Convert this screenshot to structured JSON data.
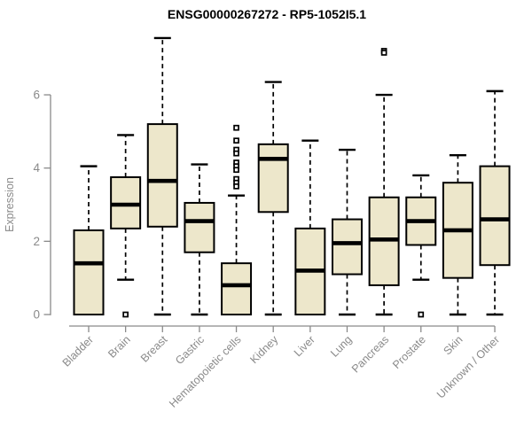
{
  "colors": {
    "background": "#ffffff",
    "box_fill": "#ede7cb",
    "box_border": "#000000",
    "median": "#000000",
    "axis": "#8a8a8a",
    "title_text": "#000000"
  },
  "chart_data": {
    "type": "boxplot",
    "title": "ENSG00000267272 - RP5-1052I5.1",
    "ylabel": "Expression",
    "xlabel": "",
    "yticks": [
      0,
      2,
      4,
      6
    ],
    "ylim": [
      0,
      7.7
    ],
    "grid": false,
    "legend": "none",
    "categories": [
      "Bladder",
      "Brain",
      "Breast",
      "Gastric",
      "Hematopoietic cells",
      "Kidney",
      "Liver",
      "Lung",
      "Pancreas",
      "Prostate",
      "Skin",
      "Unknown / Other"
    ],
    "series": [
      {
        "name": "Bladder",
        "whisker_low": 0,
        "q1": 0,
        "median": 1.4,
        "q3": 2.3,
        "whisker_high": 4.05,
        "outliers": []
      },
      {
        "name": "Brain",
        "whisker_low": 0.95,
        "q1": 2.35,
        "median": 3.0,
        "q3": 3.75,
        "whisker_high": 4.9,
        "outliers": [
          0
        ]
      },
      {
        "name": "Breast",
        "whisker_low": 0,
        "q1": 2.4,
        "median": 3.65,
        "q3": 5.2,
        "whisker_high": 7.55,
        "outliers": []
      },
      {
        "name": "Gastric",
        "whisker_low": 0,
        "q1": 1.7,
        "median": 2.55,
        "q3": 3.05,
        "whisker_high": 4.1,
        "outliers": []
      },
      {
        "name": "Hematopoietic cells",
        "whisker_low": 0,
        "q1": 0,
        "median": 0.8,
        "q3": 1.4,
        "whisker_high": 3.25,
        "outliers": [
          5.1,
          4.75,
          4.5,
          4.4,
          4.15,
          4.05,
          3.95,
          3.7,
          3.6,
          3.5
        ]
      },
      {
        "name": "Kidney",
        "whisker_low": 0,
        "q1": 2.8,
        "median": 4.25,
        "q3": 4.65,
        "whisker_high": 6.35,
        "outliers": []
      },
      {
        "name": "Liver",
        "whisker_low": 0,
        "q1": 0,
        "median": 1.2,
        "q3": 2.35,
        "whisker_high": 4.75,
        "outliers": []
      },
      {
        "name": "Lung",
        "whisker_low": 0,
        "q1": 1.1,
        "median": 1.95,
        "q3": 2.6,
        "whisker_high": 4.5,
        "outliers": []
      },
      {
        "name": "Pancreas",
        "whisker_low": 0,
        "q1": 0.8,
        "median": 2.05,
        "q3": 3.2,
        "whisker_high": 6.0,
        "outliers": [
          7.2,
          7.15
        ]
      },
      {
        "name": "Prostate",
        "whisker_low": 0.95,
        "q1": 1.9,
        "median": 2.55,
        "q3": 3.2,
        "whisker_high": 3.8,
        "outliers": [
          0
        ]
      },
      {
        "name": "Skin",
        "whisker_low": 0,
        "q1": 1.0,
        "median": 2.3,
        "q3": 3.6,
        "whisker_high": 4.35,
        "outliers": []
      },
      {
        "name": "Unknown / Other",
        "whisker_low": 0,
        "q1": 1.35,
        "median": 2.6,
        "q3": 4.05,
        "whisker_high": 6.1,
        "outliers": []
      }
    ]
  }
}
